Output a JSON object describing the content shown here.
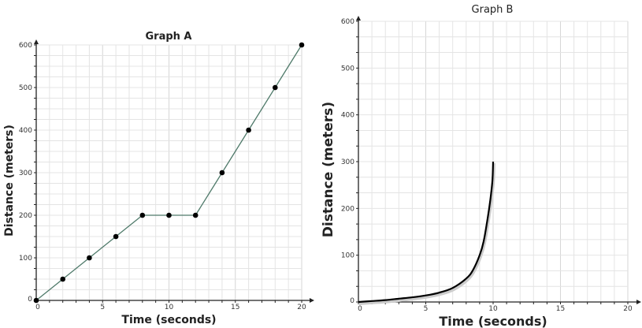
{
  "chart_data": [
    {
      "type": "line",
      "title": "Graph A",
      "xlabel": "Time (seconds)",
      "ylabel": "Distance (meters)",
      "xlim": [
        0,
        20
      ],
      "ylim": [
        0,
        600
      ],
      "xticks": [
        "0",
        "5",
        "10",
        "15",
        "20"
      ],
      "yticks": [
        "0",
        "100",
        "200",
        "300",
        "400",
        "500",
        "600"
      ],
      "grid": true,
      "markers": true,
      "line_color": "#4f7a6a",
      "x": [
        0,
        2,
        4,
        6,
        8,
        10,
        12,
        14,
        16,
        18,
        20
      ],
      "y": [
        0,
        50,
        100,
        150,
        200,
        200,
        200,
        300,
        400,
        500,
        600
      ]
    },
    {
      "type": "line",
      "title": "Graph B",
      "xlabel": "Time (seconds)",
      "ylabel": "Distance (meters)",
      "xlim": [
        0,
        20
      ],
      "ylim": [
        0,
        600
      ],
      "xticks": [
        "0",
        "5",
        "10",
        "15",
        "20"
      ],
      "yticks": [
        "0",
        "100",
        "200",
        "300",
        "400",
        "500",
        "600"
      ],
      "grid": true,
      "markers": false,
      "line_color": "#000000",
      "x": [
        0,
        1,
        2,
        3,
        4,
        5,
        6,
        7,
        8,
        8.5,
        9,
        9.3,
        9.6,
        9.8,
        9.95,
        10
      ],
      "y": [
        0,
        2,
        4,
        7,
        10,
        14,
        20,
        30,
        50,
        68,
        100,
        130,
        180,
        220,
        260,
        300
      ]
    }
  ]
}
